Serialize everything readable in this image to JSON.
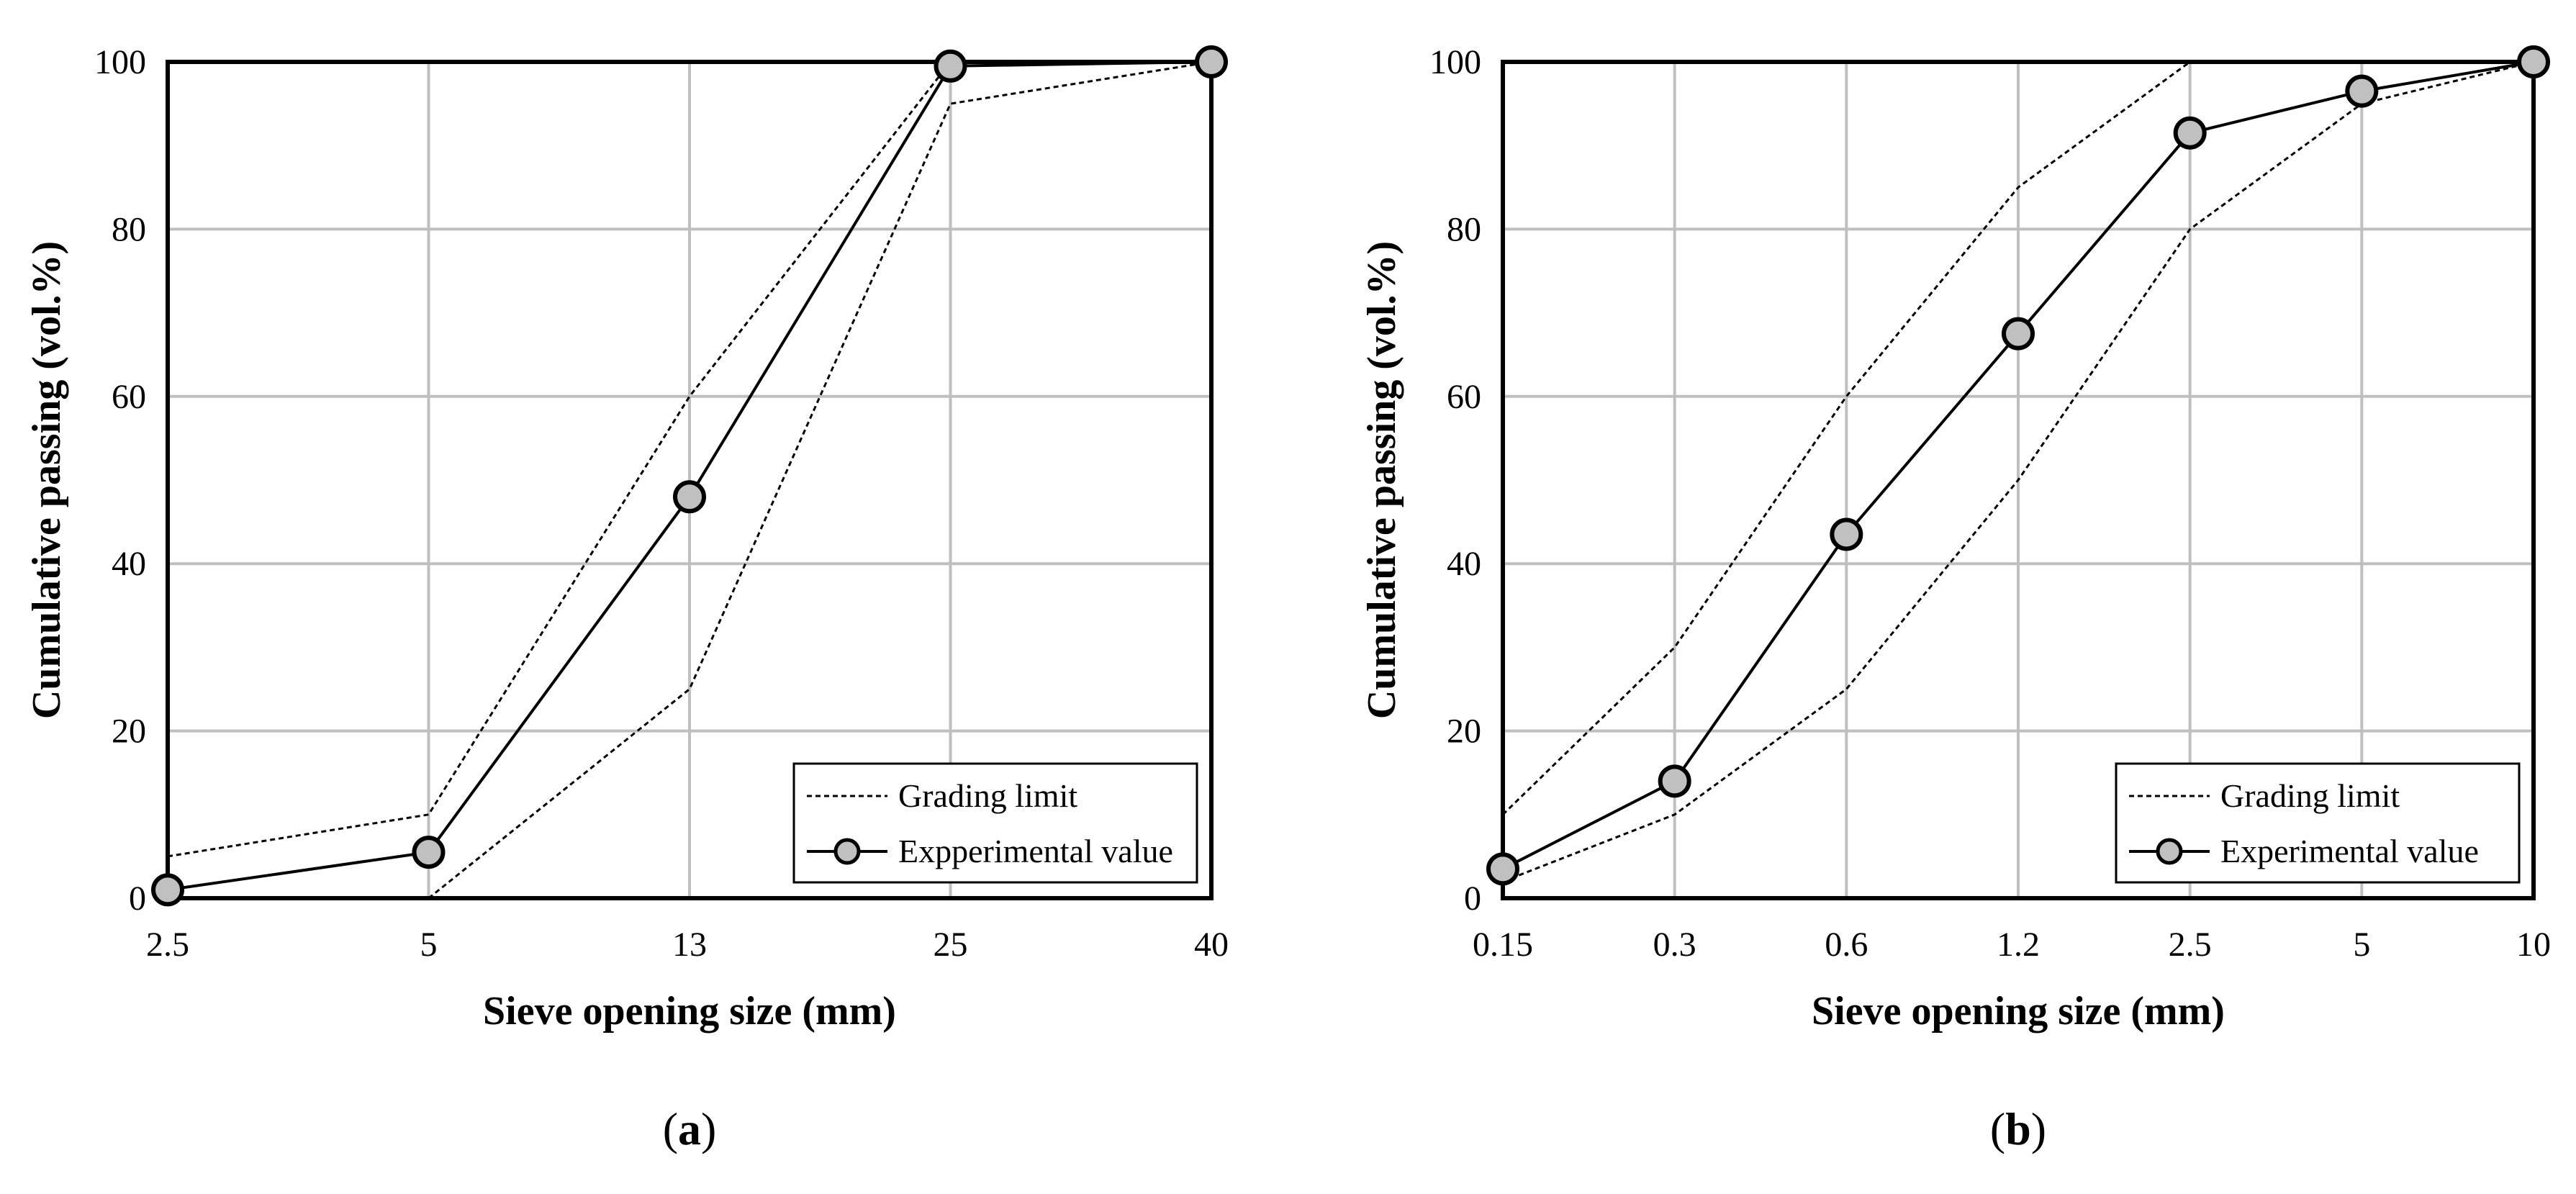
{
  "chart_data": [
    {
      "type": "line",
      "caption": {
        "open": "(",
        "letter": "a",
        "close": ")"
      },
      "title": "",
      "xlabel": "Sieve opening size (mm)",
      "ylabel": "Cumulative passing (vol.%)",
      "x_scale": "categorical",
      "categories": [
        "2.5",
        "5",
        "13",
        "25",
        "40"
      ],
      "ylim": [
        0,
        100
      ],
      "yticks": [
        0,
        20,
        40,
        60,
        80,
        100
      ],
      "grid": true,
      "legend_position": "bottom-right",
      "legend": {
        "grading_limit": "Grading limit",
        "experimental": "Expperimental value"
      },
      "series": [
        {
          "role": "upper",
          "values": [
            5,
            10,
            60,
            100,
            100
          ]
        },
        {
          "role": "lower",
          "values": [
            null,
            0,
            25,
            95,
            100
          ]
        },
        {
          "role": "experimental",
          "values": [
            1,
            5.5,
            48,
            99.5,
            100
          ]
        }
      ]
    },
    {
      "type": "line",
      "caption": {
        "open": "(",
        "letter": "b",
        "close": ")"
      },
      "title": "",
      "xlabel": "Sieve opening size (mm)",
      "ylabel": "Cumulative passing (vol.%)",
      "x_scale": "categorical",
      "categories": [
        "0.15",
        "0.3",
        "0.6",
        "1.2",
        "2.5",
        "5",
        "10"
      ],
      "ylim": [
        0,
        100
      ],
      "yticks": [
        0,
        20,
        40,
        60,
        80,
        100
      ],
      "grid": true,
      "legend_position": "bottom-right",
      "legend": {
        "grading_limit": "Grading limit",
        "experimental": "Experimental value"
      },
      "series": [
        {
          "role": "upper",
          "values": [
            10,
            30,
            60,
            85,
            100,
            null,
            null
          ]
        },
        {
          "role": "lower",
          "values": [
            2,
            10,
            25,
            50,
            80,
            95,
            100
          ]
        },
        {
          "role": "experimental",
          "values": [
            3.5,
            14,
            43.5,
            67.5,
            91.5,
            96.5,
            100
          ]
        }
      ]
    }
  ]
}
